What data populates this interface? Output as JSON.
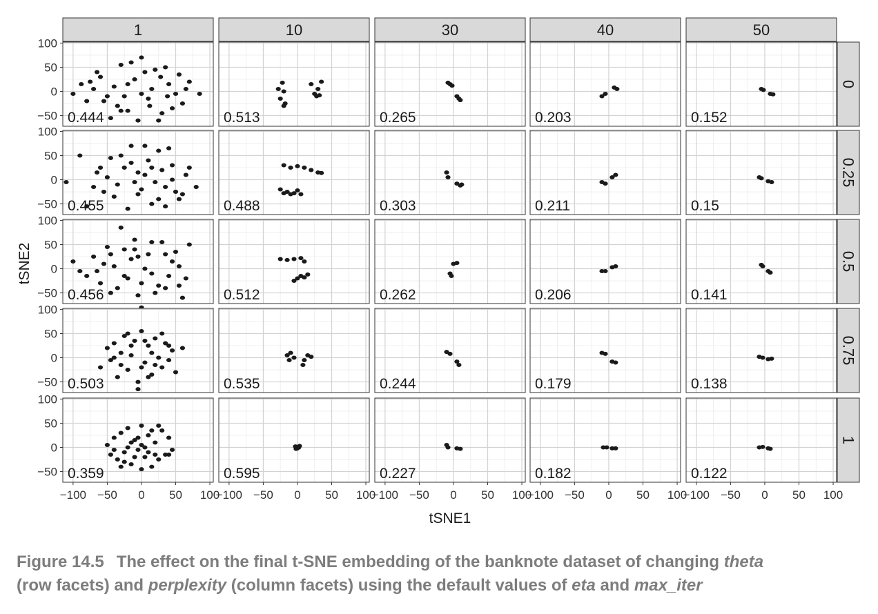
{
  "chart_data": {
    "type": "scatter",
    "xlabel": "tSNE1",
    "ylabel": "tSNE2",
    "x_ticks": [
      -100,
      -50,
      0,
      50,
      100
    ],
    "y_ticks": [
      -50,
      0,
      50,
      100
    ],
    "xlim": [
      -115,
      105
    ],
    "ylim": [
      -72,
      102
    ],
    "grid": true,
    "col_facets": [
      "1",
      "10",
      "30",
      "40",
      "50"
    ],
    "row_facets": [
      "0",
      "0.25",
      "0.5",
      "0.75",
      "1"
    ],
    "panel_labels": [
      [
        "0.444",
        "0.513",
        "0.265",
        "0.203",
        "0.152"
      ],
      [
        "0.455",
        "0.488",
        "0.303",
        "0.211",
        "0.15"
      ],
      [
        "0.456",
        "0.512",
        "0.262",
        "0.206",
        "0.141"
      ],
      [
        "0.503",
        "0.535",
        "0.244",
        "0.179",
        "0.138"
      ],
      [
        "0.359",
        "0.595",
        "0.227",
        "0.182",
        "0.122"
      ]
    ],
    "panels": [
      [
        [
          [
            -100,
            -5
          ],
          [
            -88,
            15
          ],
          [
            -70,
            5
          ],
          [
            -65,
            40
          ],
          [
            -55,
            -20
          ],
          [
            -40,
            10
          ],
          [
            -30,
            55
          ],
          [
            -20,
            -40
          ],
          [
            -10,
            25
          ],
          [
            0,
            70
          ],
          [
            10,
            -15
          ],
          [
            20,
            45
          ],
          [
            30,
            -45
          ],
          [
            40,
            15
          ],
          [
            50,
            -5
          ],
          [
            60,
            -25
          ],
          [
            70,
            20
          ],
          [
            85,
            -5
          ],
          [
            -45,
            -55
          ],
          [
            -25,
            -10
          ],
          [
            -5,
            -60
          ],
          [
            15,
            5
          ],
          [
            25,
            -60
          ],
          [
            35,
            50
          ],
          [
            -80,
            -20
          ],
          [
            -60,
            30
          ],
          [
            -35,
            -30
          ],
          [
            -15,
            60
          ],
          [
            5,
            40
          ],
          [
            28,
            30
          ],
          [
            45,
            -35
          ],
          [
            55,
            35
          ],
          [
            -50,
            -10
          ],
          [
            -20,
            15
          ],
          [
            0,
            -5
          ],
          [
            12,
            -30
          ],
          [
            38,
            -10
          ],
          [
            65,
            5
          ],
          [
            -75,
            20
          ],
          [
            -30,
            -40
          ]
        ],
        [
          [
            -25,
            -15
          ],
          [
            -20,
            0
          ],
          [
            -22,
            18
          ],
          [
            -18,
            -25
          ],
          [
            -28,
            5
          ],
          [
            -20,
            -30
          ],
          [
            25,
            -5
          ],
          [
            30,
            5
          ],
          [
            35,
            20
          ],
          [
            28,
            -10
          ],
          [
            20,
            15
          ],
          [
            32,
            -8
          ]
        ],
        [
          [
            -5,
            15
          ],
          [
            -2,
            12
          ],
          [
            -8,
            18
          ],
          [
            8,
            -15
          ],
          [
            5,
            -10
          ],
          [
            10,
            -18
          ]
        ],
        [
          [
            -10,
            -10
          ],
          [
            -5,
            -5
          ],
          [
            8,
            8
          ],
          [
            12,
            5
          ]
        ],
        [
          [
            -5,
            5
          ],
          [
            -2,
            3
          ],
          [
            8,
            -5
          ],
          [
            12,
            -6
          ]
        ]
      ],
      [
        [
          [
            -110,
            -5
          ],
          [
            -90,
            50
          ],
          [
            -80,
            -55
          ],
          [
            -65,
            15
          ],
          [
            -55,
            -25
          ],
          [
            -45,
            45
          ],
          [
            -35,
            -10
          ],
          [
            -25,
            25
          ],
          [
            -15,
            70
          ],
          [
            -5,
            -30
          ],
          [
            5,
            10
          ],
          [
            15,
            -50
          ],
          [
            25,
            60
          ],
          [
            35,
            -15
          ],
          [
            45,
            30
          ],
          [
            55,
            -40
          ],
          [
            65,
            10
          ],
          [
            80,
            -15
          ],
          [
            -70,
            -15
          ],
          [
            -50,
            5
          ],
          [
            -30,
            50
          ],
          [
            -10,
            -5
          ],
          [
            10,
            40
          ],
          [
            30,
            20
          ],
          [
            50,
            -25
          ],
          [
            -20,
            -60
          ],
          [
            0,
            -20
          ],
          [
            20,
            -5
          ],
          [
            40,
            65
          ],
          [
            60,
            -30
          ],
          [
            -40,
            -35
          ],
          [
            -15,
            35
          ],
          [
            5,
            70
          ],
          [
            25,
            -40
          ],
          [
            45,
            0
          ],
          [
            -60,
            25
          ],
          [
            -5,
            15
          ],
          [
            15,
            25
          ],
          [
            35,
            -55
          ],
          [
            70,
            25
          ]
        ],
        [
          [
            -20,
            30
          ],
          [
            -10,
            25
          ],
          [
            0,
            28
          ],
          [
            10,
            25
          ],
          [
            20,
            20
          ],
          [
            30,
            15
          ],
          [
            35,
            14
          ],
          [
            -25,
            -20
          ],
          [
            -15,
            -25
          ],
          [
            -5,
            -28
          ],
          [
            5,
            -30
          ],
          [
            0,
            -22
          ],
          [
            -20,
            -28
          ],
          [
            -10,
            -30
          ]
        ],
        [
          [
            -10,
            15
          ],
          [
            -8,
            5
          ],
          [
            5,
            -8
          ],
          [
            10,
            -12
          ],
          [
            12,
            -10
          ]
        ],
        [
          [
            -10,
            -5
          ],
          [
            -5,
            -8
          ],
          [
            5,
            5
          ],
          [
            10,
            10
          ]
        ],
        [
          [
            -8,
            5
          ],
          [
            -5,
            3
          ],
          [
            5,
            -3
          ],
          [
            10,
            -5
          ]
        ]
      ],
      [
        [
          [
            -100,
            15
          ],
          [
            -80,
            -15
          ],
          [
            -70,
            25
          ],
          [
            -60,
            -30
          ],
          [
            -50,
            45
          ],
          [
            -40,
            5
          ],
          [
            -30,
            85
          ],
          [
            -20,
            -20
          ],
          [
            -10,
            60
          ],
          [
            0,
            -30
          ],
          [
            10,
            30
          ],
          [
            20,
            -50
          ],
          [
            30,
            55
          ],
          [
            40,
            -15
          ],
          [
            50,
            35
          ],
          [
            60,
            -60
          ],
          [
            70,
            50
          ],
          [
            -90,
            -5
          ],
          [
            -55,
            10
          ],
          [
            -35,
            -40
          ],
          [
            -15,
            20
          ],
          [
            5,
            0
          ],
          [
            25,
            -35
          ],
          [
            45,
            15
          ],
          [
            65,
            -20
          ],
          [
            -45,
            -50
          ],
          [
            -25,
            40
          ],
          [
            -5,
            -55
          ],
          [
            15,
            55
          ],
          [
            35,
            -40
          ],
          [
            55,
            5
          ],
          [
            -65,
            -5
          ],
          [
            -45,
            30
          ],
          [
            -25,
            -15
          ],
          [
            -5,
            25
          ],
          [
            15,
            -10
          ],
          [
            35,
            30
          ],
          [
            55,
            -35
          ],
          [
            0,
            -80
          ],
          [
            -10,
            40
          ]
        ],
        [
          [
            -25,
            20
          ],
          [
            -15,
            18
          ],
          [
            -5,
            20
          ],
          [
            5,
            22
          ],
          [
            10,
            15
          ],
          [
            0,
            -20
          ],
          [
            5,
            -15
          ],
          [
            10,
            -18
          ],
          [
            15,
            -12
          ],
          [
            -5,
            -25
          ]
        ],
        [
          [
            0,
            10
          ],
          [
            5,
            12
          ],
          [
            -5,
            -10
          ],
          [
            -3,
            -15
          ]
        ],
        [
          [
            -10,
            -5
          ],
          [
            -5,
            -5
          ],
          [
            5,
            3
          ],
          [
            10,
            5
          ]
        ],
        [
          [
            -5,
            8
          ],
          [
            -3,
            5
          ],
          [
            5,
            -5
          ],
          [
            8,
            -8
          ]
        ]
      ],
      [
        [
          [
            -60,
            -20
          ],
          [
            -50,
            20
          ],
          [
            -45,
            -5
          ],
          [
            -40,
            30
          ],
          [
            -35,
            -40
          ],
          [
            -30,
            10
          ],
          [
            -25,
            45
          ],
          [
            -20,
            -25
          ],
          [
            -15,
            5
          ],
          [
            -10,
            35
          ],
          [
            -5,
            -50
          ],
          [
            0,
            55
          ],
          [
            5,
            -10
          ],
          [
            10,
            25
          ],
          [
            15,
            -35
          ],
          [
            20,
            40
          ],
          [
            25,
            0
          ],
          [
            30,
            -20
          ],
          [
            35,
            30
          ],
          [
            40,
            -5
          ],
          [
            45,
            15
          ],
          [
            50,
            -30
          ],
          [
            60,
            20
          ],
          [
            -30,
            -15
          ],
          [
            -15,
            25
          ],
          [
            0,
            -20
          ],
          [
            15,
            10
          ],
          [
            30,
            50
          ],
          [
            -5,
            -65
          ],
          [
            10,
            -40
          ],
          [
            -20,
            50
          ],
          [
            20,
            -15
          ],
          [
            40,
            25
          ],
          [
            -40,
            0
          ],
          [
            5,
            35
          ]
        ],
        [
          [
            -15,
            5
          ],
          [
            -10,
            10
          ],
          [
            -5,
            0
          ],
          [
            -12,
            -5
          ],
          [
            10,
            -5
          ],
          [
            15,
            5
          ],
          [
            8,
            -15
          ],
          [
            20,
            2
          ]
        ],
        [
          [
            -10,
            12
          ],
          [
            -5,
            8
          ],
          [
            5,
            -8
          ],
          [
            8,
            -15
          ]
        ],
        [
          [
            -10,
            10
          ],
          [
            -5,
            8
          ],
          [
            5,
            -8
          ],
          [
            10,
            -10
          ]
        ],
        [
          [
            -8,
            2
          ],
          [
            -3,
            0
          ],
          [
            5,
            -3
          ],
          [
            10,
            -2
          ]
        ]
      ],
      [
        [
          [
            -50,
            5
          ],
          [
            -45,
            -15
          ],
          [
            -40,
            20
          ],
          [
            -35,
            -25
          ],
          [
            -30,
            30
          ],
          [
            -25,
            -10
          ],
          [
            -20,
            40
          ],
          [
            -15,
            -35
          ],
          [
            -10,
            15
          ],
          [
            -5,
            -5
          ],
          [
            0,
            45
          ],
          [
            5,
            -20
          ],
          [
            10,
            25
          ],
          [
            15,
            -40
          ],
          [
            20,
            10
          ],
          [
            25,
            -25
          ],
          [
            30,
            35
          ],
          [
            35,
            -15
          ],
          [
            40,
            20
          ],
          [
            45,
            -5
          ],
          [
            -30,
            -40
          ],
          [
            -10,
            -20
          ],
          [
            0,
            5
          ],
          [
            10,
            -10
          ],
          [
            20,
            -15
          ],
          [
            -20,
            0
          ],
          [
            -5,
            20
          ],
          [
            5,
            0
          ],
          [
            -15,
            10
          ],
          [
            15,
            35
          ],
          [
            -25,
            -30
          ],
          [
            0,
            -45
          ],
          [
            25,
            45
          ],
          [
            -40,
            -5
          ],
          [
            40,
            -15
          ]
        ],
        [
          [
            -3,
            2
          ],
          [
            0,
            -2
          ],
          [
            3,
            3
          ],
          [
            -2,
            -3
          ],
          [
            2,
            0
          ]
        ],
        [
          [
            -10,
            5
          ],
          [
            -8,
            0
          ],
          [
            5,
            -2
          ],
          [
            10,
            -3
          ]
        ],
        [
          [
            -8,
            0
          ],
          [
            -3,
            0
          ],
          [
            5,
            -2
          ],
          [
            10,
            -2
          ]
        ],
        [
          [
            -8,
            0
          ],
          [
            -3,
            1
          ],
          [
            5,
            -2
          ],
          [
            8,
            -3
          ]
        ]
      ]
    ]
  },
  "caption": {
    "number": "Figure 14.5",
    "text_1": "The effect on the final t-SNE embedding of the banknote dataset of changing ",
    "em_1": "theta",
    "text_2": "(row facets) and ",
    "em_2": "perplexity",
    "text_3": " (column facets) using the default values of ",
    "em_3": "eta",
    "text_4": " and ",
    "em_4": "max_iter"
  }
}
